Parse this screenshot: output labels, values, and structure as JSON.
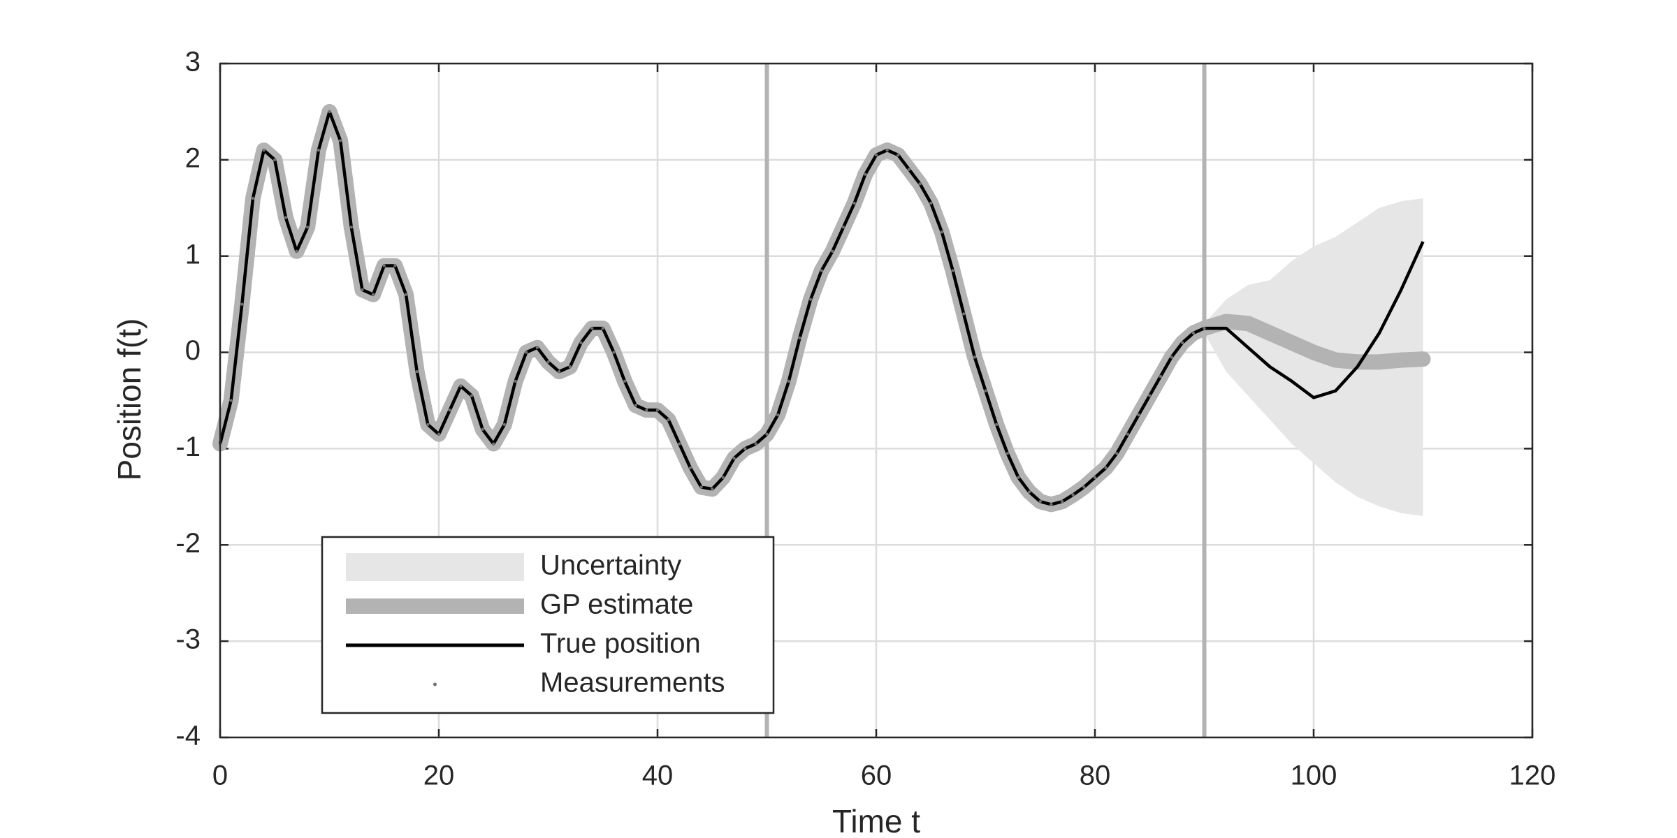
{
  "chart_data": {
    "type": "line",
    "xlabel": "Time t",
    "ylabel": "Position f(t)",
    "xlim": [
      0,
      120
    ],
    "ylim": [
      -4,
      3
    ],
    "xticks": [
      0,
      20,
      40,
      60,
      80,
      100,
      120
    ],
    "yticks": [
      -4,
      -3,
      -2,
      -1,
      0,
      1,
      2,
      3
    ],
    "grid": true,
    "legend": "lower left",
    "vlines": [
      50,
      90
    ],
    "vline_color": "#b3b3b3",
    "series": [
      {
        "name": "Uncertainty",
        "kind": "band",
        "color": "#e6e6e6",
        "x": [
          90,
          92,
          94,
          96,
          98,
          100,
          102,
          104,
          106,
          108,
          110
        ],
        "lower": [
          0.2,
          -0.2,
          -0.45,
          -0.7,
          -0.95,
          -1.15,
          -1.35,
          -1.5,
          -1.6,
          -1.67,
          -1.7
        ],
        "upper": [
          0.3,
          0.55,
          0.7,
          0.75,
          0.95,
          1.1,
          1.2,
          1.35,
          1.5,
          1.57,
          1.6
        ]
      },
      {
        "name": "GP estimate",
        "kind": "thick",
        "color": "#b3b3b3",
        "x": [
          0,
          1,
          2,
          3,
          4,
          5,
          6,
          7,
          8,
          9,
          10,
          11,
          12,
          13,
          14,
          15,
          16,
          17,
          18,
          19,
          20,
          21,
          22,
          23,
          24,
          25,
          26,
          27,
          28,
          29,
          30,
          31,
          32,
          33,
          34,
          35,
          36,
          37,
          38,
          39,
          40,
          41,
          42,
          43,
          44,
          45,
          46,
          47,
          48,
          49,
          50,
          51,
          52,
          53,
          54,
          55,
          56,
          57,
          58,
          59,
          60,
          61,
          62,
          63,
          64,
          65,
          66,
          67,
          68,
          69,
          70,
          71,
          72,
          73,
          74,
          75,
          76,
          77,
          78,
          79,
          80,
          81,
          82,
          83,
          84,
          85,
          86,
          87,
          88,
          89,
          90,
          92,
          94,
          96,
          98,
          100,
          102,
          104,
          106,
          108,
          110
        ],
        "values": [
          -0.95,
          -0.5,
          0.5,
          1.6,
          2.1,
          2.0,
          1.4,
          1.05,
          1.3,
          2.1,
          2.5,
          2.2,
          1.3,
          0.65,
          0.6,
          0.9,
          0.9,
          0.6,
          -0.2,
          -0.75,
          -0.85,
          -0.6,
          -0.35,
          -0.45,
          -0.8,
          -0.95,
          -0.75,
          -0.3,
          0.0,
          0.05,
          -0.1,
          -0.2,
          -0.15,
          0.1,
          0.25,
          0.25,
          0.0,
          -0.3,
          -0.55,
          -0.6,
          -0.6,
          -0.7,
          -0.95,
          -1.2,
          -1.4,
          -1.42,
          -1.3,
          -1.1,
          -1.0,
          -0.95,
          -0.85,
          -0.65,
          -0.3,
          0.15,
          0.55,
          0.85,
          1.05,
          1.3,
          1.55,
          1.85,
          2.05,
          2.1,
          2.05,
          1.9,
          1.75,
          1.55,
          1.25,
          0.85,
          0.4,
          -0.05,
          -0.4,
          -0.75,
          -1.05,
          -1.3,
          -1.45,
          -1.55,
          -1.58,
          -1.55,
          -1.48,
          -1.4,
          -1.3,
          -1.2,
          -1.05,
          -0.85,
          -0.65,
          -0.45,
          -0.25,
          -0.05,
          0.1,
          0.2,
          0.25,
          0.32,
          0.3,
          0.2,
          0.1,
          0.0,
          -0.08,
          -0.1,
          -0.1,
          -0.08,
          -0.07
        ]
      },
      {
        "name": "True position",
        "kind": "line",
        "color": "#000000",
        "x": [
          0,
          1,
          2,
          3,
          4,
          5,
          6,
          7,
          8,
          9,
          10,
          11,
          12,
          13,
          14,
          15,
          16,
          17,
          18,
          19,
          20,
          21,
          22,
          23,
          24,
          25,
          26,
          27,
          28,
          29,
          30,
          31,
          32,
          33,
          34,
          35,
          36,
          37,
          38,
          39,
          40,
          41,
          42,
          43,
          44,
          45,
          46,
          47,
          48,
          49,
          50,
          51,
          52,
          53,
          54,
          55,
          56,
          57,
          58,
          59,
          60,
          61,
          62,
          63,
          64,
          65,
          66,
          67,
          68,
          69,
          70,
          71,
          72,
          73,
          74,
          75,
          76,
          77,
          78,
          79,
          80,
          81,
          82,
          83,
          84,
          85,
          86,
          87,
          88,
          89,
          90,
          92,
          94,
          96,
          98,
          100,
          102,
          104,
          106,
          108,
          110
        ],
        "values": [
          -0.95,
          -0.5,
          0.5,
          1.6,
          2.1,
          2.0,
          1.4,
          1.05,
          1.3,
          2.1,
          2.5,
          2.2,
          1.3,
          0.65,
          0.6,
          0.9,
          0.9,
          0.6,
          -0.2,
          -0.75,
          -0.85,
          -0.6,
          -0.35,
          -0.45,
          -0.8,
          -0.95,
          -0.75,
          -0.3,
          0.0,
          0.05,
          -0.1,
          -0.2,
          -0.15,
          0.1,
          0.25,
          0.25,
          0.0,
          -0.3,
          -0.55,
          -0.6,
          -0.6,
          -0.7,
          -0.95,
          -1.2,
          -1.4,
          -1.42,
          -1.3,
          -1.1,
          -1.0,
          -0.95,
          -0.85,
          -0.65,
          -0.3,
          0.15,
          0.55,
          0.85,
          1.05,
          1.3,
          1.55,
          1.85,
          2.05,
          2.1,
          2.05,
          1.9,
          1.75,
          1.55,
          1.25,
          0.85,
          0.4,
          -0.05,
          -0.4,
          -0.75,
          -1.05,
          -1.3,
          -1.45,
          -1.55,
          -1.58,
          -1.55,
          -1.48,
          -1.4,
          -1.3,
          -1.2,
          -1.05,
          -0.85,
          -0.65,
          -0.45,
          -0.25,
          -0.05,
          0.1,
          0.2,
          0.25,
          0.25,
          0.05,
          -0.15,
          -0.3,
          -0.47,
          -0.4,
          -0.15,
          0.2,
          0.65,
          1.15
        ]
      },
      {
        "name": "Measurements",
        "kind": "dots",
        "color": "#707070",
        "x": [
          0,
          1,
          2,
          3,
          4,
          5,
          6,
          7,
          8,
          9,
          10,
          11,
          12,
          13,
          14,
          15,
          16,
          17,
          18,
          19,
          20,
          21,
          22,
          23,
          24,
          25,
          26,
          27,
          28,
          29,
          30,
          31,
          32,
          33,
          34,
          35,
          36,
          37,
          38,
          39,
          40,
          41,
          42,
          43,
          44,
          45,
          46,
          47,
          48,
          49,
          50,
          51,
          52,
          53,
          54,
          55,
          56,
          57,
          58,
          59,
          60,
          61,
          62,
          63,
          64,
          65,
          66,
          67,
          68,
          69,
          70,
          71,
          72,
          73,
          74,
          75,
          76,
          77,
          78,
          79,
          80,
          81,
          82,
          83,
          84,
          85,
          86,
          87,
          88,
          89,
          90
        ],
        "values": [
          -0.95,
          -0.5,
          0.5,
          1.6,
          2.1,
          2.0,
          1.4,
          1.05,
          1.3,
          2.1,
          2.5,
          2.2,
          1.3,
          0.65,
          0.6,
          0.9,
          0.9,
          0.6,
          -0.2,
          -0.75,
          -0.85,
          -0.6,
          -0.35,
          -0.45,
          -0.8,
          -0.95,
          -0.75,
          -0.3,
          0.0,
          0.05,
          -0.1,
          -0.2,
          -0.15,
          0.1,
          0.25,
          0.25,
          0.0,
          -0.3,
          -0.55,
          -0.6,
          -0.6,
          -0.7,
          -0.95,
          -1.2,
          -1.4,
          -1.42,
          -1.3,
          -1.1,
          -1.0,
          -0.95,
          -0.85,
          -0.65,
          -0.3,
          0.15,
          0.55,
          0.85,
          1.05,
          1.3,
          1.55,
          1.85,
          2.05,
          2.1,
          2.05,
          1.9,
          1.75,
          1.55,
          1.25,
          0.85,
          0.4,
          -0.05,
          -0.4,
          -0.75,
          -1.05,
          -1.3,
          -1.45,
          -1.55,
          -1.58,
          -1.55,
          -1.48,
          -1.4,
          -1.3,
          -1.2,
          -1.05,
          -0.85,
          -0.65,
          -0.45,
          -0.25,
          -0.05,
          0.1,
          0.2,
          0.25
        ]
      }
    ]
  }
}
